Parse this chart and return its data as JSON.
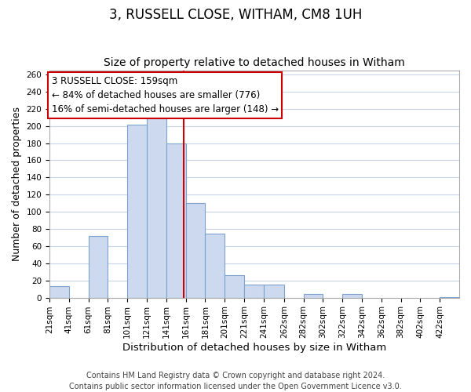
{
  "title": "3, RUSSELL CLOSE, WITHAM, CM8 1UH",
  "subtitle": "Size of property relative to detached houses in Witham",
  "xlabel": "Distribution of detached houses by size in Witham",
  "ylabel": "Number of detached properties",
  "bar_color": "#ccd9ee",
  "bar_edge_color": "#7ba3cc",
  "background_color": "#ffffff",
  "grid_color": "#c8d4e8",
  "annotation_box_color": "#ffffff",
  "annotation_box_edge": "#cc0000",
  "vline_color": "#cc0000",
  "bin_edges": [
    21,
    41,
    61,
    81,
    101,
    121,
    141,
    161,
    181,
    201,
    221,
    241,
    262,
    282,
    302,
    322,
    342,
    362,
    382,
    402,
    422,
    442
  ],
  "counts": [
    13,
    0,
    72,
    0,
    202,
    210,
    180,
    110,
    75,
    26,
    15,
    15,
    0,
    4,
    0,
    4,
    0,
    0,
    0,
    0,
    1
  ],
  "vline_x": 159,
  "annotation_text_line1": "3 RUSSELL CLOSE: 159sqm",
  "annotation_text_line2": "← 84% of detached houses are smaller (776)",
  "annotation_text_line3": "16% of semi-detached houses are larger (148) →",
  "ylim": [
    0,
    265
  ],
  "yticks": [
    0,
    20,
    40,
    60,
    80,
    100,
    120,
    140,
    160,
    180,
    200,
    220,
    240,
    260
  ],
  "xtick_labels": [
    "21sqm",
    "41sqm",
    "61sqm",
    "81sqm",
    "101sqm",
    "121sqm",
    "141sqm",
    "161sqm",
    "181sqm",
    "201sqm",
    "221sqm",
    "241sqm",
    "262sqm",
    "282sqm",
    "302sqm",
    "322sqm",
    "342sqm",
    "362sqm",
    "382sqm",
    "402sqm",
    "422sqm"
  ],
  "footer_line1": "Contains HM Land Registry data © Crown copyright and database right 2024.",
  "footer_line2": "Contains public sector information licensed under the Open Government Licence v3.0.",
  "title_fontsize": 12,
  "subtitle_fontsize": 10,
  "tick_label_fontsize": 7.5,
  "xlabel_fontsize": 9.5,
  "ylabel_fontsize": 9,
  "footer_fontsize": 7,
  "annotation_fontsize": 8.5
}
